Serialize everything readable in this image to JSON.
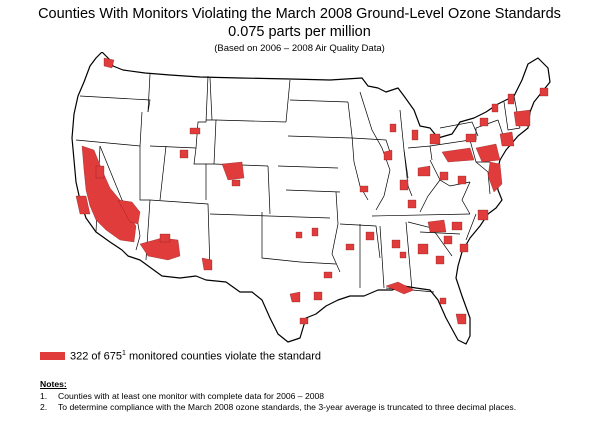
{
  "title": {
    "line1": "Counties With Monitors Violating the March 2008 Ground-Level Ozone Standards",
    "line2": "0.075 parts per million",
    "line3": "(Based on 2006 – 2008 Air Quality Data)"
  },
  "legend": {
    "text_before": "322 of 675",
    "superscript": "1",
    "text_after": " monitored counties violate the standard"
  },
  "notes": {
    "heading": "Notes:",
    "items": [
      {
        "num": "1.",
        "text": "Counties with at least one monitor with complete data for 2006 – 2008"
      },
      {
        "num": "2.",
        "text": "To determine compliance with the March 2008 ozone standards, the 3-year average is truncated to three decimal places."
      }
    ]
  },
  "colors": {
    "violation": "#e03c3c",
    "border": "#000000",
    "land": "#ffffff"
  },
  "map": {
    "region": "Contiguous United States",
    "marked_areas": "counties with violating monitors"
  }
}
